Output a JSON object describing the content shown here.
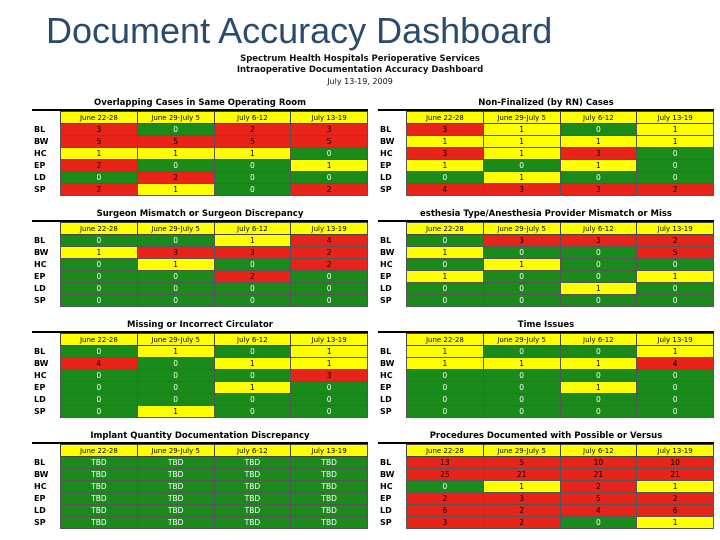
{
  "page_title": "Document Accuracy Dashboard",
  "header": {
    "line1": "Spectrum Health Hospitals Perioperative Services",
    "line2": "Intraoperative Documentation Accuracy Dashboard",
    "date": "July 13-19, 2009"
  },
  "colors": {
    "green": "#1a8a1a",
    "yellow": "#ffff00",
    "red": "#e8241a"
  },
  "columns": [
    "June 22-28",
    "June 29-July 5",
    "July 6-12",
    "July 13-19"
  ],
  "panels": [
    {
      "title": "Overlapping Cases in Same Operating Room",
      "rows": [
        {
          "label": "BL",
          "cells": [
            {
              "v": "3",
              "c": "r"
            },
            {
              "v": "0",
              "c": "g"
            },
            {
              "v": "2",
              "c": "r"
            },
            {
              "v": "3",
              "c": "r"
            }
          ]
        },
        {
          "label": "BW",
          "cells": [
            {
              "v": "5",
              "c": "r"
            },
            {
              "v": "5",
              "c": "r"
            },
            {
              "v": "5",
              "c": "r"
            },
            {
              "v": "5",
              "c": "r"
            }
          ]
        },
        {
          "label": "HC",
          "cells": [
            {
              "v": "1",
              "c": "y"
            },
            {
              "v": "1",
              "c": "y"
            },
            {
              "v": "1",
              "c": "y"
            },
            {
              "v": "0",
              "c": "g"
            }
          ]
        },
        {
          "label": "EP",
          "cells": [
            {
              "v": "2",
              "c": "r"
            },
            {
              "v": "0",
              "c": "g"
            },
            {
              "v": "0",
              "c": "g"
            },
            {
              "v": "1",
              "c": "y"
            }
          ]
        },
        {
          "label": "LD",
          "cells": [
            {
              "v": "0",
              "c": "g"
            },
            {
              "v": "2",
              "c": "r"
            },
            {
              "v": "0",
              "c": "g"
            },
            {
              "v": "0",
              "c": "g"
            }
          ]
        },
        {
          "label": "SP",
          "cells": [
            {
              "v": "2",
              "c": "r"
            },
            {
              "v": "1",
              "c": "y"
            },
            {
              "v": "0",
              "c": "g"
            },
            {
              "v": "2",
              "c": "r"
            }
          ]
        }
      ]
    },
    {
      "title": "Non-Finalized (by RN) Cases",
      "rows": [
        {
          "label": "BL",
          "cells": [
            {
              "v": "3",
              "c": "r"
            },
            {
              "v": "1",
              "c": "y"
            },
            {
              "v": "0",
              "c": "g"
            },
            {
              "v": "1",
              "c": "y"
            }
          ]
        },
        {
          "label": "BW",
          "cells": [
            {
              "v": "1",
              "c": "y"
            },
            {
              "v": "1",
              "c": "y"
            },
            {
              "v": "1",
              "c": "y"
            },
            {
              "v": "1",
              "c": "y"
            }
          ]
        },
        {
          "label": "HC",
          "cells": [
            {
              "v": "3",
              "c": "r"
            },
            {
              "v": "1",
              "c": "y"
            },
            {
              "v": "3",
              "c": "r"
            },
            {
              "v": "0",
              "c": "g"
            }
          ]
        },
        {
          "label": "EP",
          "cells": [
            {
              "v": "1",
              "c": "y"
            },
            {
              "v": "0",
              "c": "g"
            },
            {
              "v": "1",
              "c": "y"
            },
            {
              "v": "0",
              "c": "g"
            }
          ]
        },
        {
          "label": "LD",
          "cells": [
            {
              "v": "0",
              "c": "g"
            },
            {
              "v": "1",
              "c": "y"
            },
            {
              "v": "0",
              "c": "g"
            },
            {
              "v": "0",
              "c": "g"
            }
          ]
        },
        {
          "label": "SP",
          "cells": [
            {
              "v": "4",
              "c": "r"
            },
            {
              "v": "3",
              "c": "r"
            },
            {
              "v": "3",
              "c": "r"
            },
            {
              "v": "2",
              "c": "r"
            }
          ]
        }
      ]
    },
    {
      "title": "Surgeon Mismatch or Surgeon Discrepancy",
      "rows": [
        {
          "label": "BL",
          "cells": [
            {
              "v": "0",
              "c": "g"
            },
            {
              "v": "0",
              "c": "g"
            },
            {
              "v": "1",
              "c": "y"
            },
            {
              "v": "4",
              "c": "r"
            }
          ]
        },
        {
          "label": "BW",
          "cells": [
            {
              "v": "1",
              "c": "y"
            },
            {
              "v": "3",
              "c": "r"
            },
            {
              "v": "3",
              "c": "r"
            },
            {
              "v": "2",
              "c": "r"
            }
          ]
        },
        {
          "label": "HC",
          "cells": [
            {
              "v": "0",
              "c": "g"
            },
            {
              "v": "1",
              "c": "y"
            },
            {
              "v": "0",
              "c": "g"
            },
            {
              "v": "2",
              "c": "r"
            }
          ]
        },
        {
          "label": "EP",
          "cells": [
            {
              "v": "0",
              "c": "g"
            },
            {
              "v": "0",
              "c": "g"
            },
            {
              "v": "2",
              "c": "r"
            },
            {
              "v": "0",
              "c": "g"
            }
          ]
        },
        {
          "label": "LD",
          "cells": [
            {
              "v": "0",
              "c": "g"
            },
            {
              "v": "0",
              "c": "g"
            },
            {
              "v": "0",
              "c": "g"
            },
            {
              "v": "0",
              "c": "g"
            }
          ]
        },
        {
          "label": "SP",
          "cells": [
            {
              "v": "0",
              "c": "g"
            },
            {
              "v": "0",
              "c": "g"
            },
            {
              "v": "0",
              "c": "g"
            },
            {
              "v": "0",
              "c": "g"
            }
          ]
        }
      ]
    },
    {
      "title": "esthesia Type/Anesthesia Provider Mismatch or Miss",
      "rows": [
        {
          "label": "BL",
          "cells": [
            {
              "v": "0",
              "c": "g"
            },
            {
              "v": "3",
              "c": "r"
            },
            {
              "v": "3",
              "c": "r"
            },
            {
              "v": "2",
              "c": "r"
            }
          ]
        },
        {
          "label": "BW",
          "cells": [
            {
              "v": "1",
              "c": "y"
            },
            {
              "v": "0",
              "c": "g"
            },
            {
              "v": "0",
              "c": "g"
            },
            {
              "v": "5",
              "c": "r"
            }
          ]
        },
        {
          "label": "HC",
          "cells": [
            {
              "v": "0",
              "c": "g"
            },
            {
              "v": "1",
              "c": "y"
            },
            {
              "v": "0",
              "c": "g"
            },
            {
              "v": "0",
              "c": "g"
            }
          ]
        },
        {
          "label": "EP",
          "cells": [
            {
              "v": "1",
              "c": "y"
            },
            {
              "v": "0",
              "c": "g"
            },
            {
              "v": "0",
              "c": "g"
            },
            {
              "v": "1",
              "c": "y"
            }
          ]
        },
        {
          "label": "LD",
          "cells": [
            {
              "v": "0",
              "c": "g"
            },
            {
              "v": "0",
              "c": "g"
            },
            {
              "v": "1",
              "c": "y"
            },
            {
              "v": "0",
              "c": "g"
            }
          ]
        },
        {
          "label": "SP",
          "cells": [
            {
              "v": "0",
              "c": "g"
            },
            {
              "v": "0",
              "c": "g"
            },
            {
              "v": "0",
              "c": "g"
            },
            {
              "v": "0",
              "c": "g"
            }
          ]
        }
      ]
    },
    {
      "title": "Missing or Incorrect Circulator",
      "rows": [
        {
          "label": "BL",
          "cells": [
            {
              "v": "0",
              "c": "g"
            },
            {
              "v": "1",
              "c": "y"
            },
            {
              "v": "0",
              "c": "g"
            },
            {
              "v": "1",
              "c": "y"
            }
          ]
        },
        {
          "label": "BW",
          "cells": [
            {
              "v": "4",
              "c": "r"
            },
            {
              "v": "0",
              "c": "g"
            },
            {
              "v": "1",
              "c": "y"
            },
            {
              "v": "1",
              "c": "y"
            }
          ]
        },
        {
          "label": "HC",
          "cells": [
            {
              "v": "0",
              "c": "g"
            },
            {
              "v": "0",
              "c": "g"
            },
            {
              "v": "0",
              "c": "g"
            },
            {
              "v": "3",
              "c": "r"
            }
          ]
        },
        {
          "label": "EP",
          "cells": [
            {
              "v": "0",
              "c": "g"
            },
            {
              "v": "0",
              "c": "g"
            },
            {
              "v": "1",
              "c": "y"
            },
            {
              "v": "0",
              "c": "g"
            }
          ]
        },
        {
          "label": "LD",
          "cells": [
            {
              "v": "0",
              "c": "g"
            },
            {
              "v": "0",
              "c": "g"
            },
            {
              "v": "0",
              "c": "g"
            },
            {
              "v": "0",
              "c": "g"
            }
          ]
        },
        {
          "label": "SP",
          "cells": [
            {
              "v": "0",
              "c": "g"
            },
            {
              "v": "1",
              "c": "y"
            },
            {
              "v": "0",
              "c": "g"
            },
            {
              "v": "0",
              "c": "g"
            }
          ]
        }
      ]
    },
    {
      "title": "Time Issues",
      "rows": [
        {
          "label": "BL",
          "cells": [
            {
              "v": "1",
              "c": "y"
            },
            {
              "v": "0",
              "c": "g"
            },
            {
              "v": "0",
              "c": "g"
            },
            {
              "v": "1",
              "c": "y"
            }
          ]
        },
        {
          "label": "BW",
          "cells": [
            {
              "v": "1",
              "c": "y"
            },
            {
              "v": "1",
              "c": "y"
            },
            {
              "v": "1",
              "c": "y"
            },
            {
              "v": "4",
              "c": "r"
            }
          ]
        },
        {
          "label": "HC",
          "cells": [
            {
              "v": "0",
              "c": "g"
            },
            {
              "v": "0",
              "c": "g"
            },
            {
              "v": "0",
              "c": "g"
            },
            {
              "v": "0",
              "c": "g"
            }
          ]
        },
        {
          "label": "EP",
          "cells": [
            {
              "v": "0",
              "c": "g"
            },
            {
              "v": "0",
              "c": "g"
            },
            {
              "v": "1",
              "c": "y"
            },
            {
              "v": "0",
              "c": "g"
            }
          ]
        },
        {
          "label": "LD",
          "cells": [
            {
              "v": "0",
              "c": "g"
            },
            {
              "v": "0",
              "c": "g"
            },
            {
              "v": "0",
              "c": "g"
            },
            {
              "v": "0",
              "c": "g"
            }
          ]
        },
        {
          "label": "SP",
          "cells": [
            {
              "v": "0",
              "c": "g"
            },
            {
              "v": "0",
              "c": "g"
            },
            {
              "v": "0",
              "c": "g"
            },
            {
              "v": "0",
              "c": "g"
            }
          ]
        }
      ]
    },
    {
      "title": "Implant Quantity Documentation Discrepancy",
      "rows": [
        {
          "label": "BL",
          "cells": [
            {
              "v": "TBD",
              "c": "g"
            },
            {
              "v": "TBD",
              "c": "g"
            },
            {
              "v": "TBD",
              "c": "g"
            },
            {
              "v": "TBD",
              "c": "g"
            }
          ]
        },
        {
          "label": "BW",
          "cells": [
            {
              "v": "TBD",
              "c": "g"
            },
            {
              "v": "TBD",
              "c": "g"
            },
            {
              "v": "TBD",
              "c": "g"
            },
            {
              "v": "TBD",
              "c": "g"
            }
          ]
        },
        {
          "label": "HC",
          "cells": [
            {
              "v": "TBD",
              "c": "g"
            },
            {
              "v": "TBD",
              "c": "g"
            },
            {
              "v": "TBD",
              "c": "g"
            },
            {
              "v": "TBD",
              "c": "g"
            }
          ]
        },
        {
          "label": "EP",
          "cells": [
            {
              "v": "TBD",
              "c": "g"
            },
            {
              "v": "TBD",
              "c": "g"
            },
            {
              "v": "TBD",
              "c": "g"
            },
            {
              "v": "TBD",
              "c": "g"
            }
          ]
        },
        {
          "label": "LD",
          "cells": [
            {
              "v": "TBD",
              "c": "g"
            },
            {
              "v": "TBD",
              "c": "g"
            },
            {
              "v": "TBD",
              "c": "g"
            },
            {
              "v": "TBD",
              "c": "g"
            }
          ]
        },
        {
          "label": "SP",
          "cells": [
            {
              "v": "TBD",
              "c": "g"
            },
            {
              "v": "TBD",
              "c": "g"
            },
            {
              "v": "TBD",
              "c": "g"
            },
            {
              "v": "TBD",
              "c": "g"
            }
          ]
        }
      ]
    },
    {
      "title": "Procedures Documented with Possible or Versus",
      "rows": [
        {
          "label": "BL",
          "cells": [
            {
              "v": "13",
              "c": "r"
            },
            {
              "v": "5",
              "c": "r"
            },
            {
              "v": "10",
              "c": "r"
            },
            {
              "v": "10",
              "c": "r"
            }
          ]
        },
        {
          "label": "BW",
          "cells": [
            {
              "v": "25",
              "c": "r"
            },
            {
              "v": "21",
              "c": "r"
            },
            {
              "v": "21",
              "c": "r"
            },
            {
              "v": "21",
              "c": "r"
            }
          ]
        },
        {
          "label": "HC",
          "cells": [
            {
              "v": "0",
              "c": "g"
            },
            {
              "v": "1",
              "c": "y"
            },
            {
              "v": "2",
              "c": "r"
            },
            {
              "v": "1",
              "c": "y"
            }
          ]
        },
        {
          "label": "EP",
          "cells": [
            {
              "v": "2",
              "c": "r"
            },
            {
              "v": "3",
              "c": "r"
            },
            {
              "v": "5",
              "c": "r"
            },
            {
              "v": "2",
              "c": "r"
            }
          ]
        },
        {
          "label": "LD",
          "cells": [
            {
              "v": "6",
              "c": "r"
            },
            {
              "v": "2",
              "c": "r"
            },
            {
              "v": "4",
              "c": "r"
            },
            {
              "v": "6",
              "c": "r"
            }
          ]
        },
        {
          "label": "SP",
          "cells": [
            {
              "v": "3",
              "c": "r"
            },
            {
              "v": "2",
              "c": "r"
            },
            {
              "v": "0",
              "c": "g"
            },
            {
              "v": "1",
              "c": "y"
            }
          ]
        }
      ]
    }
  ]
}
